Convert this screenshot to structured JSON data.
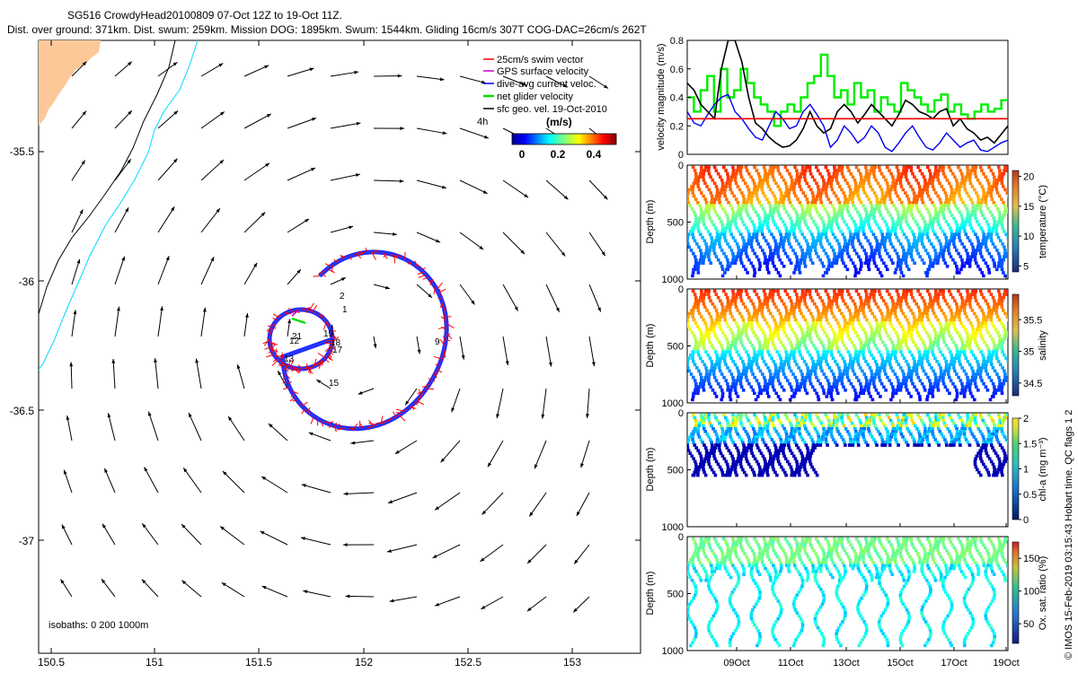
{
  "header": {
    "line1": "SG516 CrowdyHead20100809 07-Oct 12Z to 19-Oct 11Z.",
    "line2": "Dist. over ground: 371km. Dist. swum: 259km. Mission DOG: 1895km. Swum: 1544km. Gliding 16cm/s 307T COG-DAC=26cm/s 262T"
  },
  "footer_credit": "© IMOS 15-Feb-2019 03:15:43 Hobart time. QC flags 1  2",
  "colors": {
    "land": "#fcc898",
    "coast_black": "#000000",
    "coast_cyan": "#00d8ff",
    "swim": "#ff0000",
    "gps": "#cc00cc",
    "dac": "#0000ff",
    "net": "#00dd00",
    "geo": "#000000",
    "velocity_threshold": "#ee0000"
  },
  "map": {
    "x_ticks": [
      "150.5",
      "151",
      "151.5",
      "152",
      "152.5",
      "153"
    ],
    "y_ticks": [
      "-35.5",
      "-36",
      "-36.5",
      "-37"
    ],
    "isobath_text": "isobaths: 0   200  1000m",
    "track_labels": [
      "1",
      "2",
      "9",
      "19",
      "18",
      "17",
      "15",
      "13",
      "12",
      "21",
      "4h"
    ],
    "legend": [
      {
        "label": "25cm/s swim vector",
        "color": "#ff0000"
      },
      {
        "label": "GPS surface velocity",
        "color": "#cc00cc"
      },
      {
        "label": "dive-avg current veloc.",
        "color": "#0000ff"
      },
      {
        "label": "net glider velocity",
        "color": "#00dd00"
      },
      {
        "label": "sfc geo. vel. 19-Oct-2010",
        "color": "#000000"
      }
    ],
    "legend_time": "4h",
    "colorbar": {
      "title": "(m/s)",
      "ticks": [
        "0",
        "0.2",
        "0.4"
      ]
    }
  },
  "panels": {
    "date_ticks": [
      "09Oct",
      "11Oct",
      "13Oct",
      "15Oct",
      "17Oct",
      "19Oct"
    ],
    "depth_label": "Depth (m)",
    "depth_ticks": [
      "0",
      "500",
      "1000"
    ],
    "velocity": {
      "ylabel": "velocity magnitude (m/s)",
      "ticks": [
        "0",
        "0.2",
        "0.4",
        "0.6",
        "0.8"
      ]
    },
    "temperature": {
      "label": "temperature (°C)",
      "ticks": [
        "5",
        "10",
        "15",
        "20"
      ]
    },
    "salinity": {
      "label": "salinity",
      "ticks": [
        "34.5",
        "35",
        "35.5"
      ]
    },
    "chla": {
      "label": "chl-a (mg m⁻³)",
      "ticks": [
        "0",
        "0.5",
        "1",
        "1.5",
        "2"
      ]
    },
    "oxygen": {
      "label": "Ox. sat. ratio (%)",
      "ticks": [
        "50",
        "100",
        "150"
      ]
    }
  },
  "chart_data": [
    {
      "type": "line",
      "title": "",
      "xlabel": "",
      "ylabel": "velocity magnitude (m/s)",
      "ylim": [
        0,
        0.8
      ],
      "xlim_days": [
        "07-Oct 12Z",
        "19-Oct 11Z"
      ],
      "threshold": 0.25,
      "series": [
        {
          "values": [
            0.5,
            0.45,
            0.35,
            0.3,
            0.25,
            0.6,
            0.8,
            0.8,
            0.65,
            0.4,
            0.22,
            0.18,
            0.12,
            0.08,
            0.05,
            0.06,
            0.1,
            0.18,
            0.3,
            0.2,
            0.15,
            0.18,
            0.3,
            0.35,
            0.3,
            0.22,
            0.28,
            0.35,
            0.3,
            0.25,
            0.2,
            0.28,
            0.38,
            0.35,
            0.3,
            0.28,
            0.25,
            0.3,
            0.32,
            0.2,
            0.25,
            0.18,
            0.15,
            0.1,
            0.12,
            0.08,
            0.14,
            0.2
          ]
        },
        {
          "values": [
            0.4,
            0.3,
            0.45,
            0.55,
            0.3,
            0.6,
            0.4,
            0.45,
            0.6,
            0.5,
            0.4,
            0.35,
            0.3,
            0.2,
            0.3,
            0.35,
            0.3,
            0.4,
            0.5,
            0.55,
            0.7,
            0.55,
            0.4,
            0.45,
            0.35,
            0.5,
            0.4,
            0.45,
            0.3,
            0.4,
            0.35,
            0.3,
            0.5,
            0.45,
            0.4,
            0.35,
            0.3,
            0.38,
            0.42,
            0.3,
            0.35,
            0.28,
            0.25,
            0.3,
            0.35,
            0.3,
            0.32,
            0.38
          ]
        },
        {
          "values": [
            0.3,
            0.22,
            0.2,
            0.28,
            0.35,
            0.4,
            0.42,
            0.3,
            0.25,
            0.18,
            0.12,
            0.1,
            0.2,
            0.3,
            0.25,
            0.18,
            0.2,
            0.3,
            0.35,
            0.28,
            0.2,
            0.05,
            0.1,
            0.2,
            0.15,
            0.08,
            0.12,
            0.2,
            0.15,
            0.05,
            0.02,
            0.08,
            0.15,
            0.2,
            0.12,
            0.05,
            0.03,
            0.08,
            0.15,
            0.1,
            0.05,
            0.08,
            0.1,
            0.03,
            0.02,
            0.05,
            0.08,
            0.1
          ]
        }
      ]
    },
    {
      "type": "heatmap",
      "name": "temperature",
      "colorbar_range": [
        4,
        21
      ],
      "units": "°C"
    },
    {
      "type": "heatmap",
      "name": "salinity",
      "colorbar_range": [
        34.3,
        35.9
      ]
    },
    {
      "type": "heatmap",
      "name": "chl-a",
      "colorbar_range": [
        0,
        2
      ],
      "units": "mg m-3"
    },
    {
      "type": "heatmap",
      "name": "Ox. sat. ratio",
      "colorbar_range": [
        20,
        175
      ],
      "units": "%"
    }
  ]
}
